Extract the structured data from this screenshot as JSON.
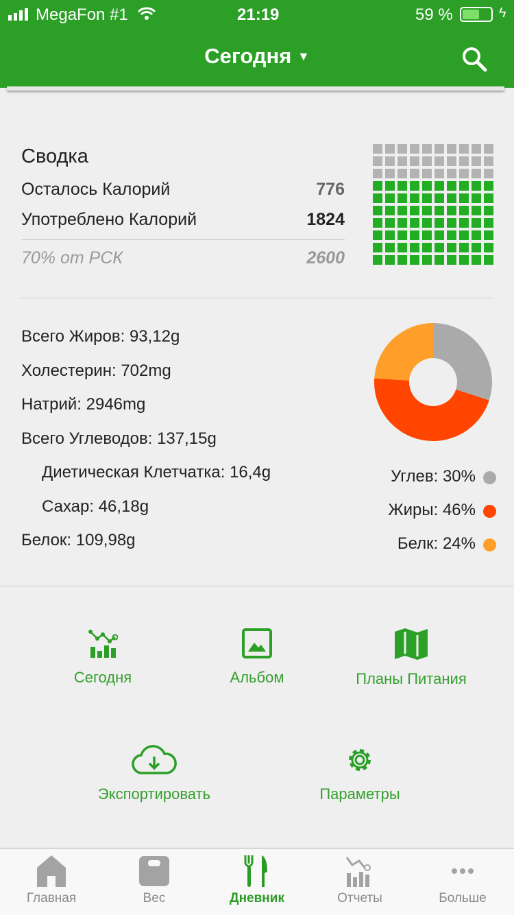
{
  "status_bar": {
    "carrier": "MegaFon #1",
    "time": "21:19",
    "battery": "59 %",
    "battery_level": 0.59
  },
  "header": {
    "title": "Сегодня"
  },
  "summary": {
    "title": "Сводка",
    "remaining_label": "Осталось Калорий",
    "remaining_value": "776",
    "consumed_label": "Употреблено Калорий",
    "consumed_value": "1824",
    "percent_label": "70% от РСК",
    "goal_value": "2600",
    "waffle": {
      "total": 100,
      "filled": 70,
      "filled_color": "#22ad22",
      "empty_color": "#b3b3b3"
    }
  },
  "nutrients": [
    {
      "text": "Всего Жиров: 93,12g",
      "indent": false
    },
    {
      "text": "Холестерин: 702mg",
      "indent": false
    },
    {
      "text": "Натрий: 2946mg",
      "indent": false
    },
    {
      "text": "Всего Углеводов: 137,15g",
      "indent": false
    },
    {
      "text": "Диетическая Клетчатка: 16,4g",
      "indent": true
    },
    {
      "text": "Сахар: 46,18g",
      "indent": true
    },
    {
      "text": "Белок: 109,98g",
      "indent": false
    }
  ],
  "chart_data": {
    "type": "pie",
    "categories": [
      "Углев",
      "Жиры",
      "Белк"
    ],
    "values": [
      30,
      46,
      24
    ],
    "colors": [
      "#aaaaaa",
      "#ff4500",
      "#ff9f2a"
    ],
    "legend": [
      "Углев: 30%",
      "Жиры: 46%",
      "Белк: 24%"
    ]
  },
  "actions": [
    {
      "label": "Сегодня",
      "icon": "chart-icon"
    },
    {
      "label": "Альбом",
      "icon": "image-icon"
    },
    {
      "label": "Планы Питания",
      "icon": "map-icon"
    },
    {
      "label": "Экспортировать",
      "icon": "cloud-download-icon"
    },
    {
      "label": "Параметры",
      "icon": "gear-icon"
    }
  ],
  "tabs": [
    {
      "label": "Главная",
      "icon": "home-icon",
      "active": false
    },
    {
      "label": "Вес",
      "icon": "scale-icon",
      "active": false
    },
    {
      "label": "Дневник",
      "icon": "utensils-icon",
      "active": true
    },
    {
      "label": "Отчеты",
      "icon": "reports-icon",
      "active": false
    },
    {
      "label": "Больше",
      "icon": "more-icon",
      "active": false
    }
  ],
  "colors": {
    "accent": "#2b9f26",
    "active_tab": "#2a9b25",
    "inactive_tab": "#8a8a8a"
  }
}
